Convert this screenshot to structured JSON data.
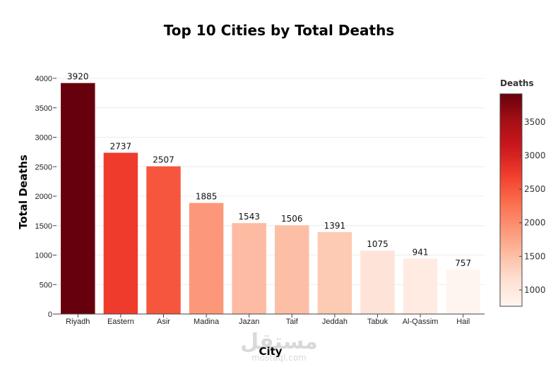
{
  "chart_data": {
    "type": "bar",
    "title": "Top 10 Cities by Total Deaths",
    "xlabel": "City",
    "ylabel": "Total Deaths",
    "categories": [
      "Riyadh",
      "Eastern",
      "Asir",
      "Madina",
      "Jazan",
      "Taif",
      "Jeddah",
      "Tabuk",
      "Al-Qassim",
      "Hail"
    ],
    "values": [
      3920,
      2737,
      2507,
      1885,
      1543,
      1506,
      1391,
      1075,
      941,
      757
    ],
    "data_labels": [
      "3920",
      "2737",
      "2507",
      "1885",
      "1543",
      "1506",
      "1391",
      "1075",
      "941",
      "757"
    ],
    "ylim": [
      0,
      4000
    ],
    "yticks": [
      "0",
      "500",
      "1000",
      "1500",
      "2000",
      "2500",
      "3000",
      "3500",
      "4000"
    ],
    "grid": true,
    "colorscale": {
      "title": "Deaths",
      "range": [
        757,
        3920
      ],
      "ticks": [
        "1000",
        "1500",
        "2000",
        "2500",
        "3000",
        "3500"
      ],
      "colors": [
        "#fff5f0",
        "#fee0d2",
        "#fcbba1",
        "#fc9272",
        "#fb6a4a",
        "#ef3b2c",
        "#cb181d",
        "#a50f15",
        "#67000d"
      ]
    }
  },
  "watermark": {
    "arabic": "مستقل",
    "latin": "mostaql.com"
  }
}
